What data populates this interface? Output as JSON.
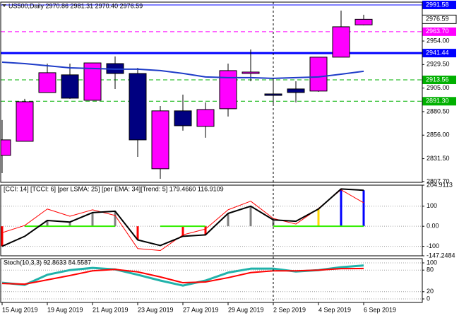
{
  "chart_data": [
    {
      "type": "candlestick",
      "title": "US500,Daily 2970.86 2981.31 2970.40 2976.59",
      "categories": [
        "15 Aug 2019",
        null,
        "19 Aug 2019",
        null,
        "21 Aug 2019",
        null,
        "23 Aug 2019",
        null,
        "27 Aug 2019",
        null,
        "29 Aug 2019",
        null,
        "2 Sep 2019",
        null,
        "4 Sep 2019",
        null,
        "6 Sep 2019"
      ],
      "open": [
        2834.9,
        2849.6,
        2900.4,
        2918.8,
        2892.3,
        2930.5,
        2920.2,
        2821.0,
        2881.3,
        2865.1,
        2883.5,
        2920.2,
        2898.9,
        2904.1,
        2901.9,
        2937.2,
        2970.86
      ],
      "high": [
        2871.7,
        2893.8,
        2930.5,
        2930.5,
        2931.2,
        2937.9,
        2926.1,
        2886.4,
        2898.2,
        2890.1,
        2930.5,
        2945.2,
        2914.4,
        2912.1,
        2937.2,
        2985.7,
        2981.31
      ],
      "low": [
        2816.5,
        2849.6,
        2900.4,
        2893.8,
        2892.3,
        2904.0,
        2833.4,
        2810.6,
        2860.7,
        2853.3,
        2875.4,
        2912.1,
        2887.9,
        2890.1,
        2901.2,
        2937.2,
        2970.4
      ],
      "close": [
        2851.1,
        2890.8,
        2921.0,
        2894.5,
        2931.2,
        2920.2,
        2851.1,
        2881.3,
        2865.8,
        2882.7,
        2923.2,
        2921.7,
        2897.4,
        2900.4,
        2937.2,
        2968.8,
        2976.59
      ],
      "up_color": "#ff00ff",
      "down_color": "#000080",
      "wick_color": "#000000",
      "series": [
        {
          "color": "#1e3cc8",
          "width": 2,
          "values": [
            2932.0,
            2930.5,
            2928.3,
            2926.1,
            2925.4,
            2924.7,
            2924.7,
            2923.2,
            2920.3,
            2916.6,
            2915.9,
            2915.9,
            2915.1,
            2915.9,
            2916.6,
            2919.5,
            2922.5
          ]
        }
      ],
      "levels": [
        {
          "value": 2991.58,
          "color": "#0000ff",
          "style": "solid"
        },
        {
          "value": 2963.7,
          "label": "2963.70",
          "color": "#ff00ff",
          "style": "dashed"
        },
        {
          "value": 2941.44,
          "color": "#0000ff",
          "style": "thick"
        },
        {
          "value": 2913.56,
          "color": "#00b000",
          "style": "dashed"
        },
        {
          "value": 2891.3,
          "label": "2891.30",
          "color": "#00b000",
          "style": "dashed"
        }
      ],
      "last_price": 2976.59,
      "ylim": [
        2806.9,
        2994.5
      ],
      "yticks": [
        {
          "value": 2954,
          "label": "2954.00"
        },
        {
          "value": 2929.5,
          "label": "2929.50"
        },
        {
          "value": 2905,
          "label": "2905.00"
        },
        {
          "value": 2880.5,
          "label": "2880.50"
        },
        {
          "value": 2856,
          "label": "2856.00"
        },
        {
          "value": 2831.5,
          "label": "2831.50"
        },
        {
          "value": 2807.7,
          "label": "2807.70"
        }
      ]
    },
    {
      "type": "line",
      "title": "[CCI: 14] [TCCI: 6] [per LSMA: 25] [per EMA: 34][Trend: 5]  179.4660 116.9109",
      "histogram": {
        "values": [
          -100,
          null,
          29,
          21,
          68,
          75,
          -68,
          null,
          -50,
          -43,
          64,
          100,
          32,
          null,
          86,
          186,
          179.466
        ],
        "colors": [
          "#ff0000",
          null,
          "#808080",
          "#808080",
          "#808080",
          "#808080",
          "#ff0000",
          null,
          "#ff0000",
          "#ff0000",
          "#808080",
          "#808080",
          "#808080",
          null,
          "#ffd700",
          "#0000ff",
          "#0000ff"
        ]
      },
      "series": [
        {
          "color": "#33ee00",
          "width": 2,
          "values": [
            null,
            0,
            0,
            0,
            0,
            0,
            null,
            0,
            0,
            0,
            null,
            null,
            0,
            0,
            0,
            0,
            0
          ]
        },
        {
          "color": "#ff0000",
          "width": 1,
          "values": [
            -32,
            4,
            86,
            50,
            82,
            54,
            -111,
            -121,
            -43,
            -14,
            82,
            125,
            39,
            11,
            89,
            182,
            116.9109
          ]
        },
        {
          "color": "#000000",
          "width": 2,
          "values": [
            -100,
            -50,
            29,
            21,
            68,
            75,
            -68,
            -96,
            -50,
            -43,
            64,
            100,
            32,
            25,
            86,
            186,
            179.466
          ]
        }
      ],
      "ylim": [
        -147.2484,
        204.9113
      ],
      "yticks": [
        204.9113,
        100,
        {
          "value": 0,
          "label": "0.00"
        },
        -100,
        -147.2484
      ],
      "grid": true
    },
    {
      "type": "line",
      "title": "Stoch(10,3,3) 92.8633 84.5587",
      "series": [
        {
          "color": "#20b2aa",
          "width": 3,
          "values": [
            45,
            39,
            67,
            80,
            86,
            82,
            67,
            51,
            37,
            51,
            73,
            84,
            84,
            76,
            80,
            88,
            92.8633
          ]
        },
        {
          "color": "#ff0000",
          "width": 2,
          "values": [
            43,
            41,
            53,
            65,
            78,
            82,
            75,
            61,
            45,
            47,
            59,
            73,
            78,
            78,
            80,
            84,
            84.5587
          ]
        }
      ],
      "ylim": [
        -9.8,
        111.8
      ],
      "yticks": [
        100,
        80,
        20,
        0
      ],
      "grid": true
    }
  ]
}
